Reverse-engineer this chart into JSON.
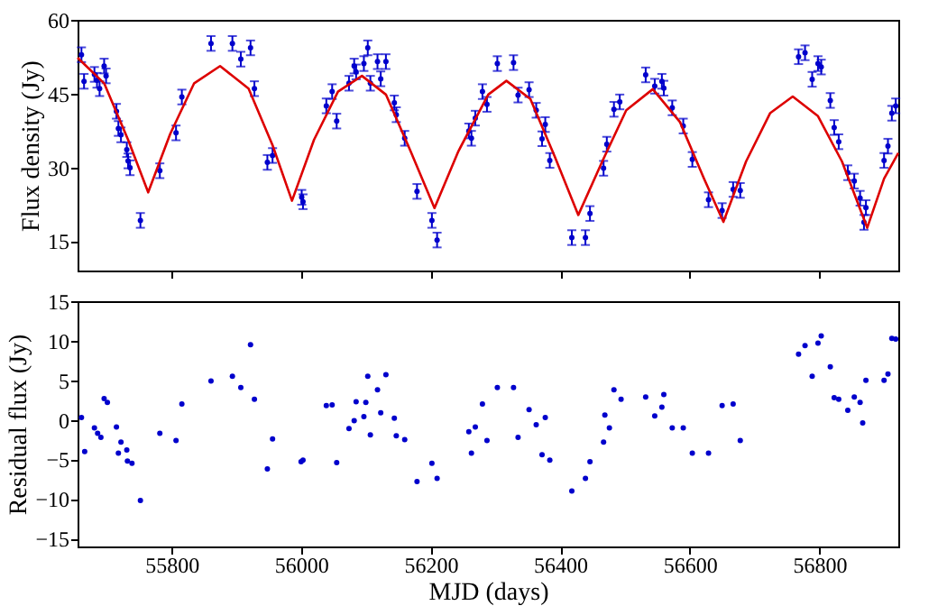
{
  "chart_data": [
    {
      "type": "scatter",
      "ylabel": "Flux density (Jy)",
      "xlim": [
        55655,
        56922
      ],
      "xticks": [
        55800,
        56000,
        56200,
        56400,
        56600,
        56800
      ],
      "ylim": [
        9,
        60
      ],
      "yticks": [
        15,
        30,
        45,
        60
      ],
      "tick_labels": "y",
      "marker": "circle",
      "grid": false,
      "series": [
        {
          "color": "#0000cc",
          "x": [
            55661,
            55665,
            55681,
            55685,
            55689,
            55696,
            55699,
            55715,
            55718,
            55722,
            55731,
            55733,
            55736,
            55752,
            55782,
            55807,
            55816,
            55861,
            55894,
            55907,
            55922,
            55928,
            55948,
            55956,
            56001,
            56003,
            56039,
            56048,
            56055,
            56074,
            56082,
            56085,
            56097,
            56103,
            56107,
            56118,
            56123,
            56131,
            56144,
            56147,
            56160,
            56179,
            56202,
            56210,
            56259,
            56263,
            56269,
            56280,
            56287,
            56303,
            56328,
            56335,
            56352,
            56363,
            56372,
            56377,
            56384,
            56418,
            56439,
            56446,
            56467,
            56472,
            56483,
            56492,
            56532,
            56546,
            56557,
            56560,
            56573,
            56590,
            56604,
            56629,
            56650,
            56667,
            56678,
            56768,
            56778,
            56789,
            56798,
            56803,
            56817,
            56823,
            56830,
            56844,
            56854,
            56863,
            56869,
            56872,
            56900,
            56906,
            56912,
            56918
          ],
          "values": [
            52.9,
            47.5,
            48.9,
            47.7,
            46.0,
            50.6,
            48.6,
            41.4,
            37.9,
            36.6,
            33.6,
            31.3,
            29.9,
            19.2,
            29.3,
            37.0,
            44.3,
            55.2,
            55.2,
            52.0,
            54.3,
            46.0,
            31.0,
            32.4,
            23.9,
            23.0,
            42.5,
            45.4,
            39.4,
            47.1,
            50.6,
            49.4,
            51.1,
            54.3,
            47.1,
            51.5,
            48.0,
            51.5,
            43.1,
            40.7,
            35.9,
            25.1,
            19.2,
            15.2,
            37.4,
            35.9,
            40.0,
            45.4,
            42.8,
            51.1,
            51.3,
            44.7,
            45.8,
            41.6,
            35.8,
            38.7,
            31.4,
            15.7,
            15.7,
            20.6,
            29.8,
            34.7,
            41.8,
            43.3,
            48.8,
            46.5,
            47.5,
            46.1,
            42.1,
            38.4,
            31.6,
            23.4,
            21.2,
            25.5,
            25.3,
            52.5,
            53.3,
            47.9,
            51.1,
            50.4,
            43.6,
            38.1,
            35.2,
            28.9,
            27.2,
            23.7,
            18.8,
            21.8,
            31.4,
            34.3,
            41.0,
            42.5
          ],
          "errors": [
            1.5,
            1.5,
            1.5,
            1.5,
            1.5,
            1.5,
            1.5,
            1.5,
            1.5,
            1.5,
            1.5,
            1.5,
            1.5,
            1.5,
            1.5,
            1.5,
            1.5,
            1.5,
            1.5,
            1.5,
            1.5,
            1.5,
            1.5,
            1.5,
            1.5,
            1.5,
            1.5,
            1.5,
            1.5,
            1.5,
            1.5,
            1.5,
            1.5,
            1.5,
            1.5,
            1.5,
            1.5,
            1.5,
            1.5,
            1.5,
            1.5,
            1.5,
            1.5,
            1.5,
            1.5,
            1.5,
            1.5,
            1.5,
            1.5,
            1.5,
            1.5,
            1.5,
            1.5,
            1.5,
            1.5,
            1.5,
            1.5,
            1.5,
            1.5,
            1.5,
            1.5,
            1.5,
            1.5,
            1.5,
            1.5,
            1.5,
            1.5,
            1.5,
            1.5,
            1.5,
            1.5,
            1.5,
            1.5,
            1.5,
            1.5,
            1.5,
            1.5,
            1.5,
            1.5,
            1.5,
            1.5,
            1.5,
            1.5,
            1.5,
            1.5,
            1.5,
            1.5,
            1.5,
            1.5,
            1.5,
            1.5,
            1.5
          ]
        },
        {
          "type": "line",
          "color": "#dd0000",
          "line_style": "solid",
          "marker": "none",
          "x": [
            55655,
            55696,
            55733,
            55764,
            55798,
            55835,
            55875,
            55919,
            55956,
            55986,
            56020,
            56057,
            56094,
            56131,
            56169,
            56206,
            56243,
            56289,
            56317,
            56354,
            56391,
            56428,
            56465,
            56502,
            56543,
            56585,
            56622,
            56652,
            56687,
            56724,
            56759,
            56798,
            56835,
            56874,
            56900,
            56922
          ],
          "values": [
            52.3,
            47.1,
            35.6,
            24.9,
            36.8,
            47.1,
            50.6,
            46.0,
            34.5,
            23.2,
            35.6,
            45.4,
            48.6,
            44.8,
            33.3,
            21.7,
            33.3,
            44.8,
            47.6,
            43.9,
            32.4,
            20.3,
            31.2,
            41.6,
            45.9,
            39.2,
            27.7,
            18.9,
            31.2,
            41.0,
            44.4,
            40.4,
            31.2,
            17.7,
            27.7,
            32.9
          ]
        }
      ]
    },
    {
      "type": "scatter",
      "xlabel": "MJD (days)",
      "ylabel": "Residual flux (Jy)",
      "xlim": [
        55655,
        56922
      ],
      "xticks": [
        55800,
        56000,
        56200,
        56400,
        56600,
        56800
      ],
      "ylim": [
        -16,
        15
      ],
      "yticks": [
        -15,
        -10,
        -5,
        0,
        5,
        10,
        15
      ],
      "marker": "circle",
      "grid": false,
      "series": [
        {
          "color": "#0000cc",
          "x": [
            55661,
            55666,
            55681,
            55686,
            55691,
            55696,
            55701,
            55715,
            55718,
            55722,
            55731,
            55732,
            55739,
            55752,
            55782,
            55807,
            55816,
            55861,
            55894,
            55907,
            55922,
            55928,
            55948,
            55956,
            56000,
            56003,
            56039,
            56048,
            56055,
            56074,
            56082,
            56085,
            56097,
            56100,
            56103,
            56107,
            56118,
            56123,
            56131,
            56144,
            56147,
            56160,
            56179,
            56202,
            56210,
            56259,
            56263,
            56269,
            56280,
            56287,
            56303,
            56328,
            56335,
            56352,
            56363,
            56372,
            56377,
            56384,
            56418,
            56439,
            56446,
            56467,
            56469,
            56476,
            56483,
            56494,
            56532,
            56546,
            56557,
            56560,
            56573,
            56590,
            56604,
            56629,
            56650,
            56667,
            56678,
            56768,
            56778,
            56789,
            56798,
            56803,
            56817,
            56823,
            56830,
            56844,
            56854,
            56863,
            56867,
            56872,
            56900,
            56906,
            56912,
            56918
          ],
          "values": [
            0.3,
            -4.0,
            -1.0,
            -1.7,
            -2.2,
            2.7,
            2.2,
            -0.9,
            -4.2,
            -2.8,
            -3.8,
            -5.2,
            -5.5,
            -10.2,
            -1.7,
            -2.6,
            2.0,
            4.9,
            5.5,
            4.1,
            9.5,
            2.6,
            -6.2,
            -2.4,
            -5.3,
            -5.1,
            1.8,
            1.9,
            -5.4,
            -1.1,
            -0.1,
            2.3,
            0.4,
            2.2,
            5.5,
            -1.9,
            3.8,
            0.9,
            5.7,
            0.2,
            -2.0,
            -2.5,
            -7.8,
            -5.5,
            -7.4,
            -1.5,
            -4.2,
            -0.9,
            2.0,
            -2.6,
            4.1,
            4.1,
            -2.2,
            1.3,
            -0.6,
            -4.4,
            0.3,
            -5.1,
            -9.0,
            -7.4,
            -5.3,
            -2.8,
            0.6,
            -1.0,
            3.8,
            2.6,
            2.9,
            0.5,
            1.6,
            3.2,
            -1.0,
            -1.0,
            -4.2,
            -4.2,
            1.8,
            2.0,
            -2.6,
            8.3,
            9.4,
            5.5,
            9.7,
            10.6,
            6.7,
            2.8,
            2.6,
            1.2,
            2.9,
            2.2,
            -0.4,
            5.0,
            5.0,
            5.8,
            10.3,
            10.2
          ]
        }
      ]
    }
  ]
}
